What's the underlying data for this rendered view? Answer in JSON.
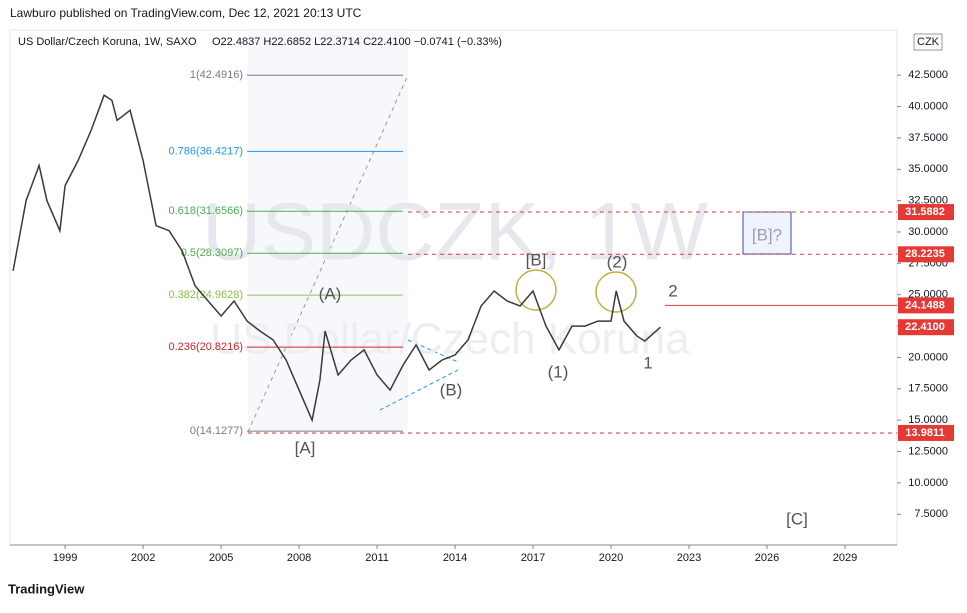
{
  "header": {
    "publisher": "Lawburo published on TradingView.com, Dec 12, 2021 20:13 UTC",
    "symbol": "US Dollar/Czech Koruna, 1W, SAXO",
    "ohlc": "O22.4837 H22.6852 L22.3714 C22.4100 −0.0741 (−0.33%)",
    "currency": "CZK"
  },
  "footer": {
    "brand": "TradingView"
  },
  "chart_data": {
    "type": "line",
    "watermark": [
      "USDCZK, 1W",
      "US Dollar/Czech Koruna"
    ],
    "xlim": [
      1996.88,
      2031.0
    ],
    "xticks": [
      1999,
      2002,
      2005,
      2008,
      2011,
      2014,
      2017,
      2020,
      2023,
      2026,
      2029
    ],
    "ylim": [
      5.05,
      46.1
    ],
    "yticks": [
      {
        "value": 7.5,
        "label": "7.5000"
      },
      {
        "value": 10,
        "label": "10.0000"
      },
      {
        "value": 12.5,
        "label": "12.5000"
      },
      {
        "value": 15,
        "label": "15.0000"
      },
      {
        "value": 17.5,
        "label": "17.5000"
      },
      {
        "value": 20,
        "label": "20.0000"
      },
      {
        "value": 22.5,
        "label": "22.5000"
      },
      {
        "value": 25,
        "label": "25.0000"
      },
      {
        "value": 27.5,
        "label": "27.5000"
      },
      {
        "value": 30,
        "label": "30.0000"
      },
      {
        "value": 32.5,
        "label": "32.5000"
      },
      {
        "value": 35,
        "label": "35.0000"
      },
      {
        "value": 37.5,
        "label": "37.5000"
      },
      {
        "value": 40,
        "label": "40.0000"
      },
      {
        "value": 42.5,
        "label": "42.5000"
      }
    ],
    "series": [
      {
        "name": "USDCZK",
        "color": "#3a3a3a",
        "x": [
          1997.0,
          1997.5,
          1998.0,
          1998.3,
          1998.8,
          1999.0,
          1999.5,
          2000.0,
          2000.5,
          2000.8,
          2001.0,
          2001.5,
          2002.0,
          2002.5,
          2003.0,
          2003.5,
          2004.0,
          2004.5,
          2005.0,
          2005.5,
          2006.0,
          2006.5,
          2007.0,
          2007.5,
          2008.0,
          2008.5,
          2008.8,
          2009.0,
          2009.5,
          2010.0,
          2010.5,
          2011.0,
          2011.5,
          2012.0,
          2012.5,
          2013.0,
          2013.5,
          2014.0,
          2014.5,
          2015.0,
          2015.5,
          2016.0,
          2016.5,
          2017.0,
          2017.5,
          2018.0,
          2018.5,
          2019.0,
          2019.5,
          2020.0,
          2020.2,
          2020.5,
          2021.0,
          2021.3,
          2021.9
        ],
        "values": [
          26.9,
          32.5,
          35.3,
          32.5,
          30.1,
          33.7,
          35.7,
          38.1,
          40.9,
          40.5,
          38.9,
          39.7,
          35.7,
          30.5,
          30.1,
          28.5,
          25.7,
          24.5,
          23.3,
          24.5,
          22.9,
          22.1,
          21.4,
          19.8,
          17.4,
          15.0,
          18.2,
          22.1,
          18.6,
          19.8,
          20.6,
          18.6,
          17.4,
          19.4,
          21.0,
          19.0,
          19.8,
          20.2,
          21.4,
          24.1,
          25.3,
          24.5,
          24.1,
          25.3,
          22.5,
          20.6,
          22.5,
          22.5,
          22.9,
          22.9,
          25.3,
          22.9,
          21.7,
          21.3,
          22.41
        ]
      }
    ],
    "fib": [
      {
        "value": 42.4916,
        "label": "1(42.4916)",
        "color": "#787b86"
      },
      {
        "value": 36.4217,
        "label": "0.786(36.4217)",
        "color": "#2196f3"
      },
      {
        "value": 31.6566,
        "label": "0.618(31.6566)",
        "color": "#4caf50"
      },
      {
        "value": 28.3097,
        "label": "0.5(28.3097)",
        "color": "#4caf50"
      },
      {
        "value": 24.9628,
        "label": "0.382(24.9628)",
        "color": "#8bc34a"
      },
      {
        "value": 20.8216,
        "label": "0.236(20.8216)",
        "color": "#c62828"
      },
      {
        "value": 14.1277,
        "label": "0(14.1277)",
        "color": "#787b86"
      }
    ],
    "price_lines": [
      31.5882,
      28.2235,
      24.1488,
      {
        "value": 22.41,
        "label": "22.4100"
      },
      13.9811
    ],
    "annotations": [
      "(A)",
      "[A]",
      "(B)",
      "[B]",
      "(1)",
      "(2)",
      "1",
      "2",
      "[B]?",
      "[C]"
    ]
  }
}
